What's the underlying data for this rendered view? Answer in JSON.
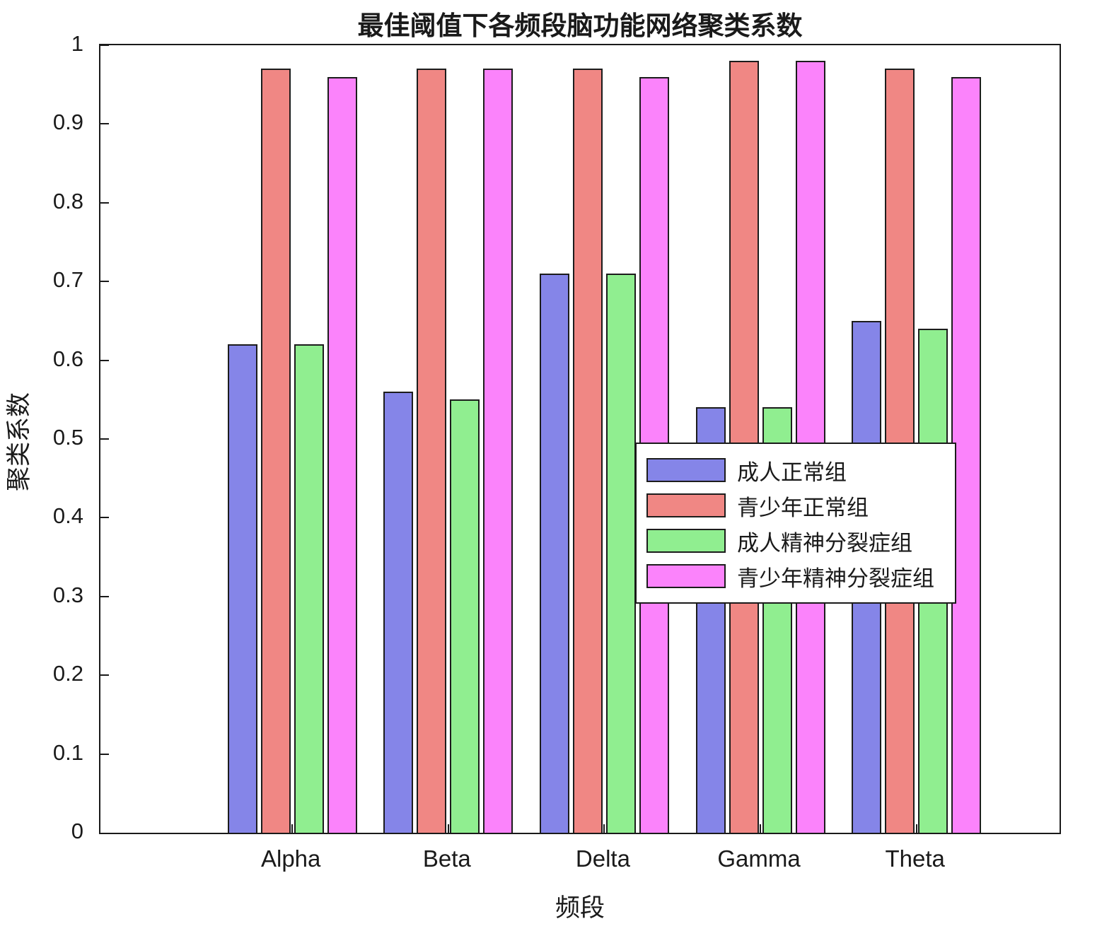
{
  "chart_data": {
    "type": "bar",
    "title": "最佳阈值下各频段脑功能网络聚类系数",
    "xlabel": "频段",
    "ylabel": "聚类系数",
    "ylim": [
      0,
      1
    ],
    "yticks": [
      0,
      0.1,
      0.2,
      0.3,
      0.4,
      0.5,
      0.6,
      0.7,
      0.8,
      0.9,
      1
    ],
    "ytick_labels": [
      "0",
      "0.1",
      "0.2",
      "0.3",
      "0.4",
      "0.5",
      "0.6",
      "0.7",
      "0.8",
      "0.9",
      "1"
    ],
    "categories": [
      "Alpha",
      "Beta",
      "Delta",
      "Gamma",
      "Theta"
    ],
    "series": [
      {
        "name": "成人正常组",
        "color": "#8585E8",
        "values": [
          0.62,
          0.56,
          0.71,
          0.54,
          0.65
        ]
      },
      {
        "name": "青少年正常组",
        "color": "#F08784",
        "values": [
          0.97,
          0.97,
          0.97,
          0.98,
          0.97
        ]
      },
      {
        "name": "成人精神分裂症组",
        "color": "#90EE90",
        "values": [
          0.62,
          0.55,
          0.71,
          0.54,
          0.64
        ]
      },
      {
        "name": "青少年精神分裂症组",
        "color": "#FB83FB",
        "values": [
          0.96,
          0.97,
          0.96,
          0.98,
          0.96
        ]
      }
    ],
    "grid": false,
    "legend_position": "middle-right",
    "axis_color": "#1a1a1a",
    "bar_edge_color": "#1c1c1c"
  }
}
